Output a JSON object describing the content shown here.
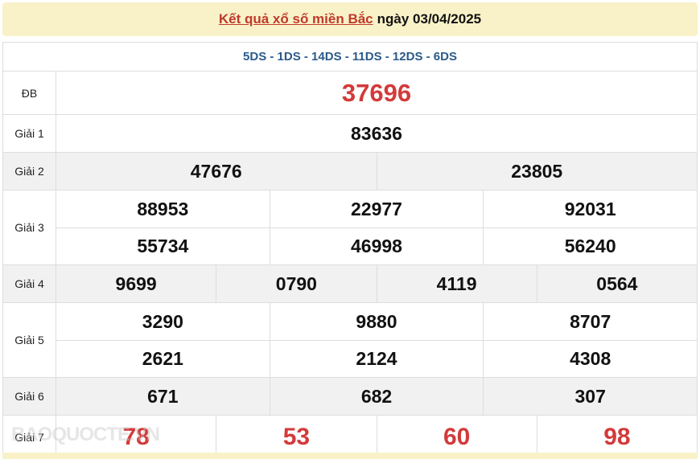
{
  "header": {
    "link": "Kết quả xổ số miền Bắc",
    "date_text": "ngày 03/04/2025"
  },
  "codes": "5DS - 1DS - 14DS - 11DS - 12DS - 6DS",
  "prizes": {
    "db": {
      "label": "ĐB",
      "values": [
        "37696"
      ]
    },
    "g1": {
      "label": "Giải 1",
      "values": [
        "83636"
      ]
    },
    "g2": {
      "label": "Giải 2",
      "values": [
        "47676",
        "23805"
      ]
    },
    "g3": {
      "label": "Giải 3",
      "values": [
        "88953",
        "22977",
        "92031",
        "55734",
        "46998",
        "56240"
      ]
    },
    "g4": {
      "label": "Giải 4",
      "values": [
        "9699",
        "0790",
        "4119",
        "0564"
      ]
    },
    "g5": {
      "label": "Giải 5",
      "values": [
        "3290",
        "9880",
        "8707",
        "2621",
        "2124",
        "4308"
      ]
    },
    "g6": {
      "label": "Giải 6",
      "values": [
        "671",
        "682",
        "307"
      ]
    },
    "g7": {
      "label": "Giải 7",
      "values": [
        "78",
        "53",
        "60",
        "98"
      ]
    }
  },
  "watermark": "BAOQUOCTE.VN",
  "colors": {
    "accent_red": "#d33a3a",
    "codes_blue": "#2b5a8a",
    "header_bg": "#f9f2c8"
  }
}
